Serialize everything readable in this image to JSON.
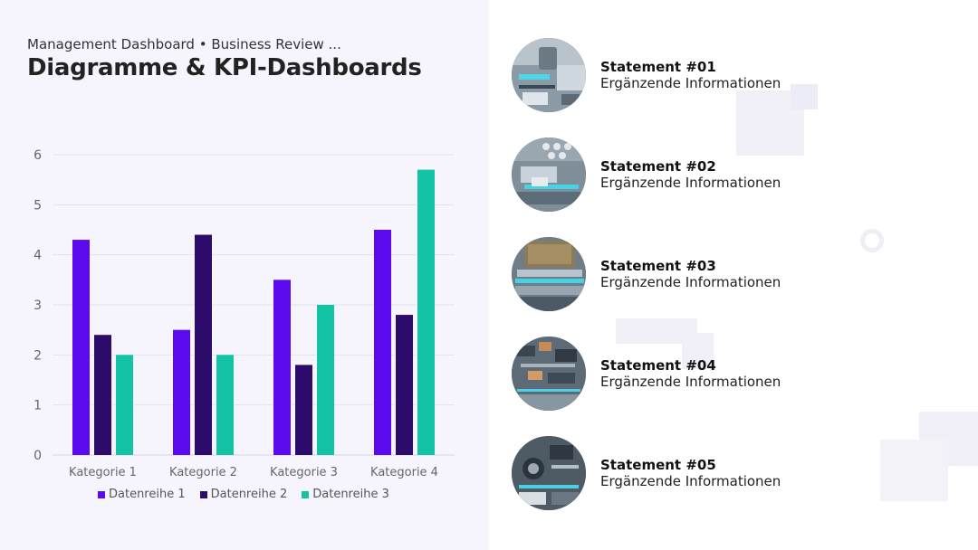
{
  "header": {
    "subtitle": "Management Dashboard • Business Review ...",
    "title": "Diagramme & KPI-Dashboards"
  },
  "chart_data": {
    "type": "bar",
    "categories": [
      "Kategorie 1",
      "Kategorie 2",
      "Kategorie 3",
      "Kategorie 4"
    ],
    "series": [
      {
        "name": "Datenreihe 1",
        "color": "#5b0af0",
        "values": [
          4.3,
          2.5,
          3.5,
          4.5
        ]
      },
      {
        "name": "Datenreihe 2",
        "color": "#2d0b6b",
        "values": [
          2.4,
          4.4,
          1.8,
          2.8
        ]
      },
      {
        "name": "Datenreihe 3",
        "color": "#12c4a5",
        "values": [
          2.0,
          2.0,
          3.0,
          5.7
        ]
      }
    ],
    "yticks": [
      "0",
      "1",
      "2",
      "3",
      "4",
      "5",
      "6"
    ],
    "ylim": [
      0,
      6
    ],
    "grid": true,
    "legend": "bottom"
  },
  "statements": [
    {
      "title": "Statement #01",
      "subtitle": "Ergänzende Informationen",
      "icon": "circuit-board-photo"
    },
    {
      "title": "Statement #02",
      "subtitle": "Ergänzende Informationen",
      "icon": "circuit-board-photo"
    },
    {
      "title": "Statement #03",
      "subtitle": "Ergänzende Informationen",
      "icon": "cpu-chip-photo"
    },
    {
      "title": "Statement #04",
      "subtitle": "Ergänzende Informationen",
      "icon": "circuit-board-photo"
    },
    {
      "title": "Statement #05",
      "subtitle": "Ergänzende Informationen",
      "icon": "circuit-board-photo"
    }
  ]
}
